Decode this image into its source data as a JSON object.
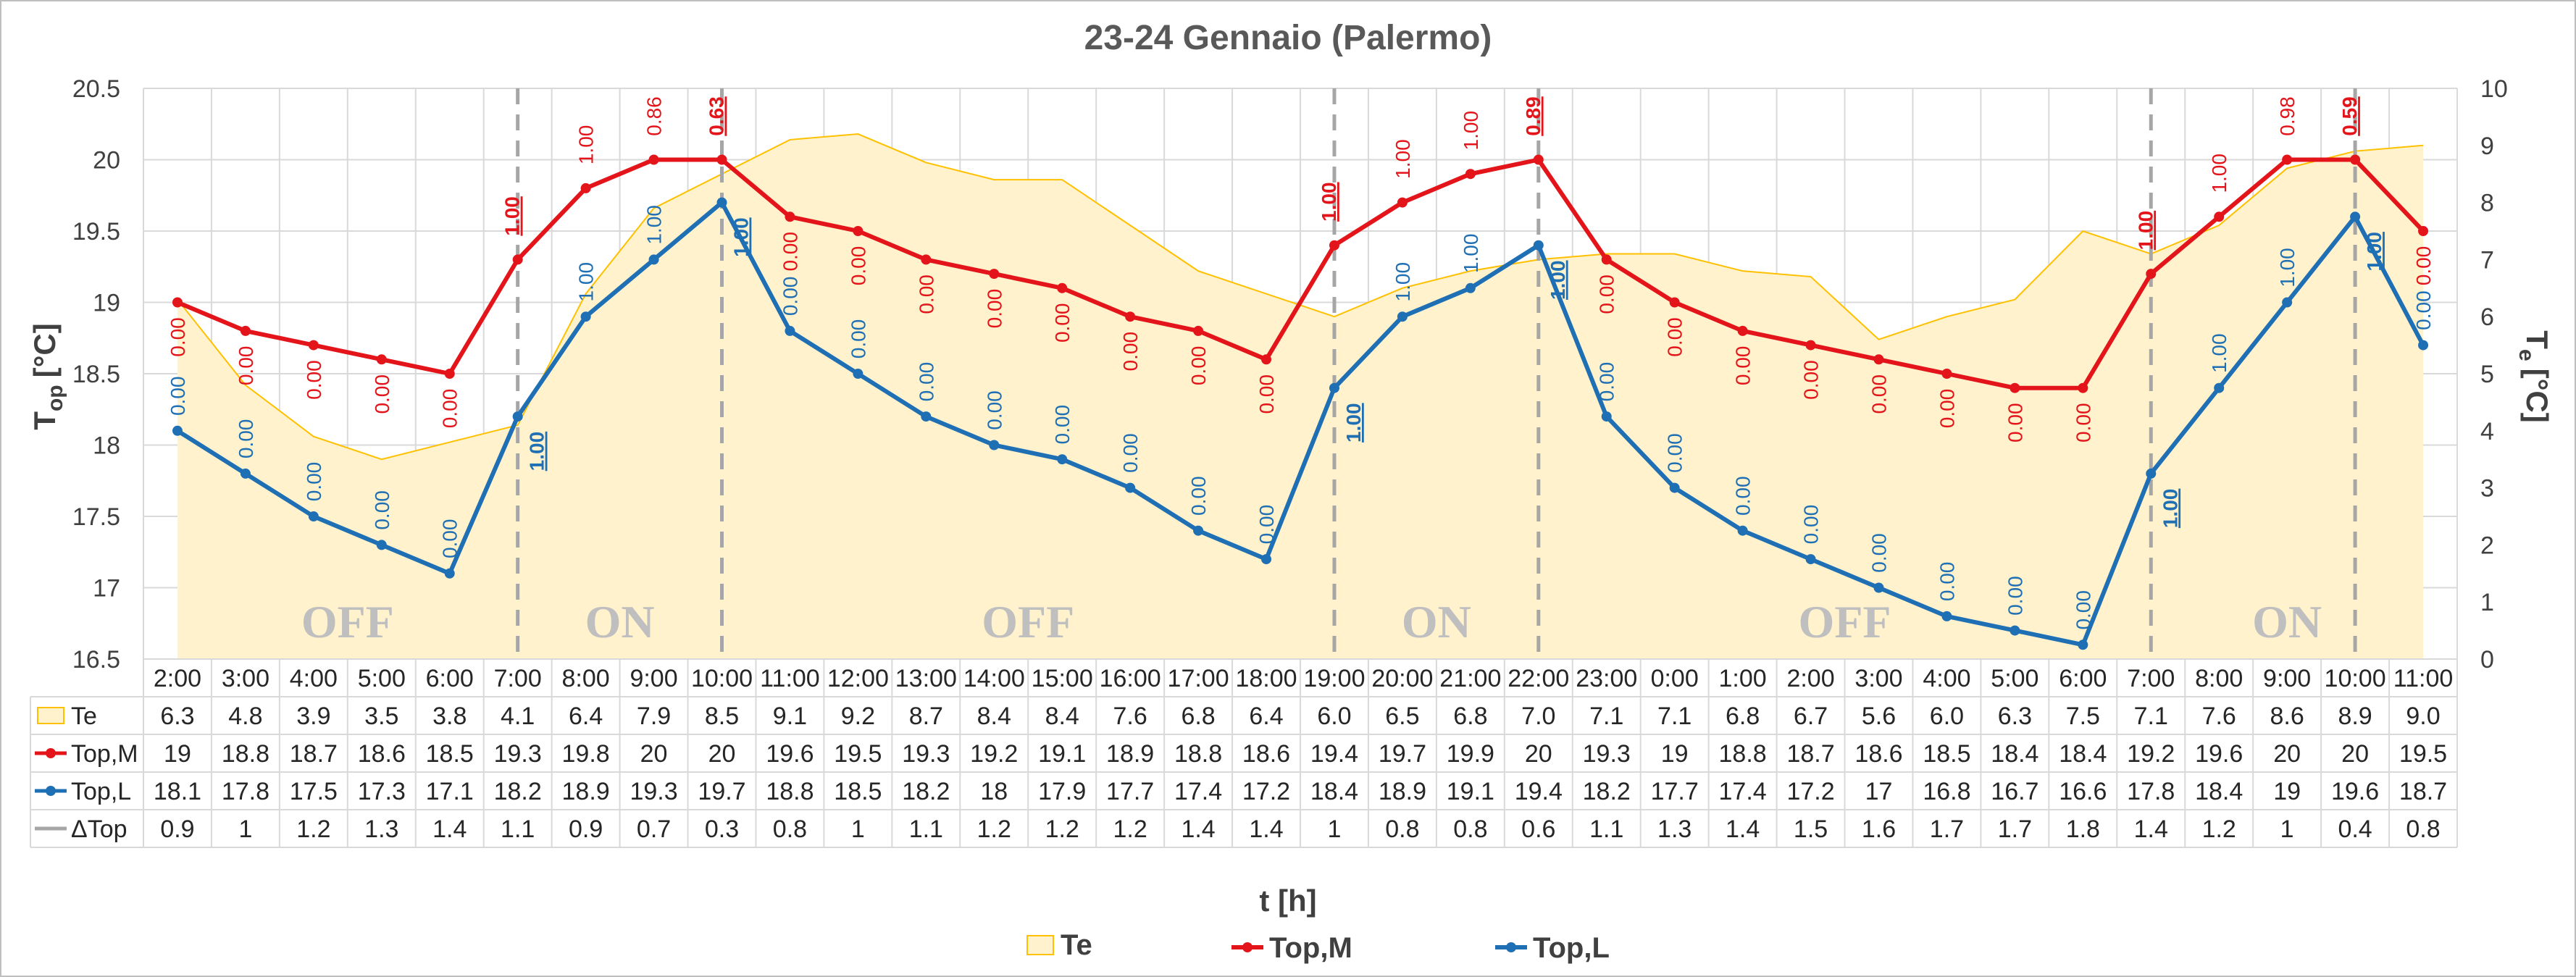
{
  "chart_data": {
    "type": "line",
    "title": "23-24 Gennaio (Palermo)",
    "xlabel": "t [h]",
    "ylabel_left": {
      "main": "T",
      "sub": "op",
      "unit": "[°C]"
    },
    "ylabel_right": {
      "main": "T",
      "sub": "e",
      "unit": "[°C]"
    },
    "ylim_left": [
      16.5,
      20.5
    ],
    "ylim_right": [
      0,
      10
    ],
    "yticks_left": [
      "20.5",
      "20",
      "19.5",
      "19",
      "18.5",
      "18",
      "17.5",
      "17",
      "16.5"
    ],
    "yticks_right": [
      "10",
      "9",
      "8",
      "7",
      "6",
      "5",
      "4",
      "3",
      "2",
      "1",
      "0"
    ],
    "grid": true,
    "legend_position": "bottom",
    "categories": [
      "2:00",
      "3:00",
      "4:00",
      "5:00",
      "6:00",
      "7:00",
      "8:00",
      "9:00",
      "10:00",
      "11:00",
      "12:00",
      "13:00",
      "14:00",
      "15:00",
      "16:00",
      "17:00",
      "18:00",
      "19:00",
      "20:00",
      "21:00",
      "22:00",
      "23:00",
      "0:00",
      "1:00",
      "2:00",
      "3:00",
      "4:00",
      "5:00",
      "6:00",
      "7:00",
      "8:00",
      "9:00",
      "10:00",
      "11:00"
    ],
    "series": [
      {
        "name": "Te",
        "kind": "area",
        "axis": "right",
        "color": "#FFF2CC",
        "stroke": "#FFC000",
        "display": [
          "6.3",
          "4.8",
          "3.9",
          "3.5",
          "3.8",
          "4.1",
          "6.4",
          "7.9",
          "8.5",
          "9.1",
          "9.2",
          "8.7",
          "8.4",
          "8.4",
          "7.6",
          "6.8",
          "6.4",
          "6.0",
          "6.5",
          "6.8",
          "7.0",
          "7.1",
          "7.1",
          "6.8",
          "6.7",
          "5.6",
          "6.0",
          "6.3",
          "7.5",
          "7.1",
          "7.6",
          "8.6",
          "8.9",
          "9.0"
        ],
        "values": [
          6.3,
          4.8,
          3.9,
          3.5,
          3.8,
          4.1,
          6.4,
          7.9,
          8.5,
          9.1,
          9.2,
          8.7,
          8.4,
          8.4,
          7.6,
          6.8,
          6.4,
          6.0,
          6.5,
          6.8,
          7.0,
          7.1,
          7.1,
          6.8,
          6.7,
          5.6,
          6.0,
          6.3,
          7.5,
          7.1,
          7.6,
          8.6,
          8.9,
          9.0
        ]
      },
      {
        "name": "Top,M",
        "kind": "line",
        "axis": "left",
        "color": "#E3151A",
        "display": [
          "19",
          "18.8",
          "18.7",
          "18.6",
          "18.5",
          "19.3",
          "19.8",
          "20",
          "20",
          "19.6",
          "19.5",
          "19.3",
          "19.2",
          "19.1",
          "18.9",
          "18.8",
          "18.6",
          "19.4",
          "19.7",
          "19.9",
          "20",
          "19.3",
          "19",
          "18.8",
          "18.7",
          "18.6",
          "18.5",
          "18.4",
          "18.4",
          "19.2",
          "19.6",
          "20",
          "20",
          "19.5"
        ],
        "values": [
          19,
          18.8,
          18.7,
          18.6,
          18.5,
          19.3,
          19.8,
          20,
          20,
          19.6,
          19.5,
          19.3,
          19.2,
          19.1,
          18.9,
          18.8,
          18.6,
          19.4,
          19.7,
          19.9,
          20,
          19.3,
          19,
          18.8,
          18.7,
          18.6,
          18.5,
          18.4,
          18.4,
          19.2,
          19.6,
          20,
          20,
          19.5
        ],
        "point_labels": [
          "0.00",
          "0.00",
          "0.00",
          "0.00",
          "0.00",
          "1.00",
          "1.00",
          "0.86",
          "0.63",
          "0.00",
          "0.00",
          "0.00",
          "0.00",
          "0.00",
          "0.00",
          "0.00",
          "0.00",
          "1.00",
          "1.00",
          "1.00",
          "0.89",
          "0.00",
          "0.00",
          "0.00",
          "0.00",
          "0.00",
          "0.00",
          "0.00",
          "0.00",
          "1.00",
          "1.00",
          "0.98",
          "0.59",
          "0.00"
        ]
      },
      {
        "name": "Top,L",
        "kind": "line",
        "axis": "left",
        "color": "#1F6FB5",
        "display": [
          "18.1",
          "17.8",
          "17.5",
          "17.3",
          "17.1",
          "18.2",
          "18.9",
          "19.3",
          "19.7",
          "18.8",
          "18.5",
          "18.2",
          "18",
          "17.9",
          "17.7",
          "17.4",
          "17.2",
          "18.4",
          "18.9",
          "19.1",
          "19.4",
          "18.2",
          "17.7",
          "17.4",
          "17.2",
          "17",
          "16.8",
          "16.7",
          "16.6",
          "17.8",
          "18.4",
          "19",
          "19.6",
          "18.7"
        ],
        "values": [
          18.1,
          17.8,
          17.5,
          17.3,
          17.1,
          18.2,
          18.9,
          19.3,
          19.7,
          18.8,
          18.5,
          18.2,
          18,
          17.9,
          17.7,
          17.4,
          17.2,
          18.4,
          18.9,
          19.1,
          19.4,
          18.2,
          17.7,
          17.4,
          17.2,
          17,
          16.8,
          16.7,
          16.6,
          17.8,
          18.4,
          19,
          19.6,
          18.7
        ],
        "point_labels": [
          "0.00",
          "0.00",
          "0.00",
          "0.00",
          "0.00",
          "1.00",
          "1.00",
          "1.00",
          "1.00",
          "0.00",
          "0.00",
          "0.00",
          "0.00",
          "0.00",
          "0.00",
          "0.00",
          "0.00",
          "1.00",
          "1.00",
          "1.00",
          "1.00",
          "0.00",
          "0.00",
          "0.00",
          "0.00",
          "0.00",
          "0.00",
          "0.00",
          "0.00",
          "1.00",
          "1.00",
          "1.00",
          "1.00",
          "0.00"
        ]
      },
      {
        "name": "ΔTop",
        "kind": "table-only",
        "color": "#A6A6A6",
        "display": [
          "0.9",
          "1",
          "1.2",
          "1.3",
          "1.4",
          "1.1",
          "0.9",
          "0.7",
          "0.3",
          "0.8",
          "1",
          "1.1",
          "1.2",
          "1.2",
          "1.2",
          "1.4",
          "1.4",
          "1",
          "0.8",
          "0.8",
          "0.6",
          "1.1",
          "1.3",
          "1.4",
          "1.5",
          "1.6",
          "1.7",
          "1.7",
          "1.8",
          "1.4",
          "1.2",
          "1",
          "0.4",
          "0.8"
        ]
      }
    ],
    "mode_bands": [
      {
        "label": "OFF",
        "from": 0,
        "to": 5
      },
      {
        "label": "ON",
        "from": 5,
        "to": 8
      },
      {
        "label": "OFF",
        "from": 8,
        "to": 17
      },
      {
        "label": "ON",
        "from": 17,
        "to": 20
      },
      {
        "label": "OFF",
        "from": 20,
        "to": 29
      },
      {
        "label": "ON",
        "from": 29,
        "to": 33
      }
    ],
    "dashed_lines_at": [
      "7:00",
      "10:00",
      "19:00",
      "22:00",
      "7:00",
      "10:00"
    ],
    "dashed_line_index": [
      5,
      8,
      17,
      20,
      29,
      32
    ],
    "legend": [
      "Te",
      "Top,M",
      "Top,L"
    ]
  }
}
